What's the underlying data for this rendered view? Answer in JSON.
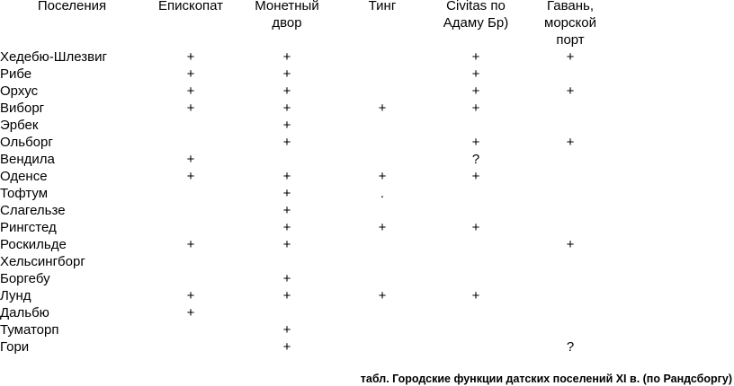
{
  "table": {
    "header": [
      [
        "Поселения"
      ],
      [
        "Епископат"
      ],
      [
        "Монетный",
        "двор"
      ],
      [
        "Тинг"
      ],
      [
        "Civitas по",
        "Адаму Бр)"
      ],
      [
        "Гавань,",
        "морской",
        "порт"
      ]
    ],
    "rows": [
      [
        "Хедебю-Шлезвиг",
        "+",
        "+",
        null,
        "+",
        "+"
      ],
      [
        "Рибе",
        "+",
        "+",
        null,
        "+",
        null
      ],
      [
        "Орхус",
        "+",
        "+",
        null,
        "+",
        "+"
      ],
      [
        "Виборг",
        "+",
        "+",
        "+",
        "+",
        null
      ],
      [
        "Эрбек",
        null,
        "+",
        null,
        null,
        null
      ],
      [
        "Ольборг",
        null,
        "+",
        null,
        "+",
        "+"
      ],
      [
        "Вендила",
        "+",
        null,
        null,
        "?",
        null
      ],
      [
        "Оденсе",
        "+",
        "+",
        "+",
        "+",
        null
      ],
      [
        "Тофтум",
        null,
        "+",
        ".",
        null,
        null
      ],
      [
        "Слагельзе",
        null,
        "+",
        null,
        null,
        null
      ],
      [
        "Рингстед",
        null,
        "+",
        "+",
        "+",
        null
      ],
      [
        "Роскильде",
        "+",
        "+",
        null,
        null,
        "+"
      ],
      [
        "Хельсингборг",
        null,
        null,
        null,
        null,
        null
      ],
      [
        "Боргебу",
        null,
        "+",
        null,
        null,
        null
      ],
      [
        "Лунд",
        "+",
        "+",
        "+",
        "+",
        null
      ],
      [
        "Дальбю",
        "+",
        null,
        null,
        null,
        null
      ],
      [
        "Туматорп",
        null,
        "+",
        null,
        null,
        null
      ],
      [
        "Гори",
        null,
        "+",
        null,
        null,
        "?"
      ]
    ],
    "caption": "табл. Городские функции датских поселений XI в. (по Рандсборгу)"
  }
}
